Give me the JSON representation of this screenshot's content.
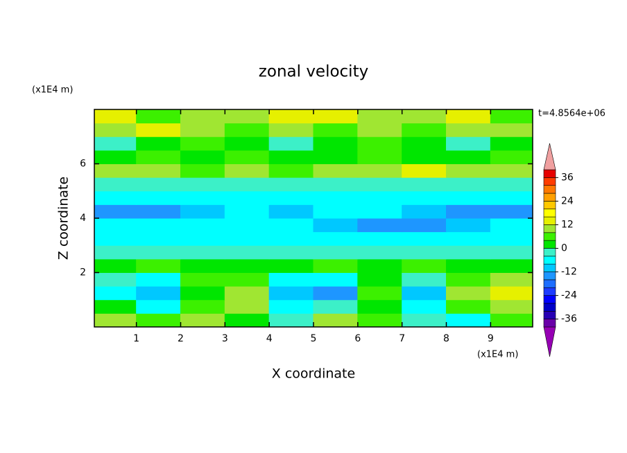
{
  "chart_data": {
    "type": "contour",
    "title": "zonal velocity",
    "y_unit": "(x1E4 m)",
    "x_unit": "(x1E4 m)",
    "time_label": "t=4.8564e+06",
    "xlabel": "X coordinate",
    "ylabel": "Z coordinate",
    "xlim": [
      0.05,
      9.95
    ],
    "ylim": [
      0,
      8
    ],
    "xticks": [
      1,
      2,
      3,
      4,
      5,
      6,
      7,
      8,
      9
    ],
    "yticks": [
      2,
      4,
      6
    ],
    "x": [
      0.5,
      1.5,
      2.5,
      3.5,
      4.5,
      5.5,
      6.5,
      7.5,
      8.5,
      9.5
    ],
    "z": [
      0.25,
      0.75,
      1.25,
      1.75,
      2.25,
      2.75,
      3.25,
      3.75,
      4.25,
      4.75,
      5.25,
      5.75,
      6.25,
      6.75,
      7.25,
      7.75
    ],
    "values": [
      [
        8,
        4,
        10,
        2,
        -4,
        10,
        6,
        -2,
        -6,
        6
      ],
      [
        2,
        -6,
        6,
        8,
        -8,
        -4,
        2,
        -8,
        4,
        8
      ],
      [
        -6,
        -10,
        2,
        10,
        -10,
        -14,
        4,
        -10,
        8,
        12
      ],
      [
        -4,
        -8,
        4,
        6,
        -8,
        -8,
        2,
        -4,
        6,
        8
      ],
      [
        2,
        4,
        2,
        2,
        2,
        4,
        2,
        4,
        2,
        2
      ],
      [
        -2,
        -4,
        -2,
        -2,
        -2,
        -2,
        -4,
        -2,
        -2,
        -2
      ],
      [
        -6,
        -6,
        -6,
        -6,
        -6,
        -6,
        -6,
        -6,
        -6,
        -6
      ],
      [
        -8,
        -8,
        -8,
        -8,
        -8,
        -10,
        -14,
        -14,
        -10,
        -8
      ],
      [
        -14,
        -14,
        -10,
        -8,
        -10,
        -8,
        -8,
        -10,
        -14,
        -14
      ],
      [
        -8,
        -6,
        -6,
        -6,
        -6,
        -6,
        -8,
        -6,
        -6,
        -6
      ],
      [
        -2,
        -2,
        -4,
        -2,
        -4,
        -2,
        -2,
        -2,
        -4,
        -2
      ],
      [
        8,
        10,
        6,
        8,
        6,
        8,
        10,
        12,
        8,
        10
      ],
      [
        2,
        4,
        2,
        4,
        2,
        2,
        4,
        2,
        2,
        4
      ],
      [
        -2,
        2,
        4,
        2,
        -2,
        2,
        4,
        2,
        -2,
        2
      ],
      [
        10,
        12,
        8,
        6,
        8,
        6,
        8,
        6,
        10,
        8
      ],
      [
        12,
        6,
        8,
        10,
        14,
        12,
        8,
        10,
        12,
        6
      ]
    ],
    "clevs": [
      -40,
      -36,
      -32,
      -28,
      -24,
      -20,
      -16,
      -12,
      -8,
      -4,
      0,
      4,
      8,
      12,
      16,
      20,
      24,
      28,
      32,
      36,
      40
    ],
    "colors": [
      "#9600b4",
      "#6a00a8",
      "#2800b4",
      "#0000c8",
      "#0000ff",
      "#1e3cff",
      "#1e6eff",
      "#1e96ff",
      "#00c8ff",
      "#00ffff",
      "#3cf0c8",
      "#00e600",
      "#3cf000",
      "#a0e632",
      "#e6f000",
      "#ffff00",
      "#ffc800",
      "#ffa000",
      "#ff7800",
      "#ff3c00",
      "#e60000",
      "#f0a0a0"
    ],
    "cbar_ticks": [
      -36,
      -24,
      -12,
      0,
      12,
      24,
      36
    ]
  }
}
